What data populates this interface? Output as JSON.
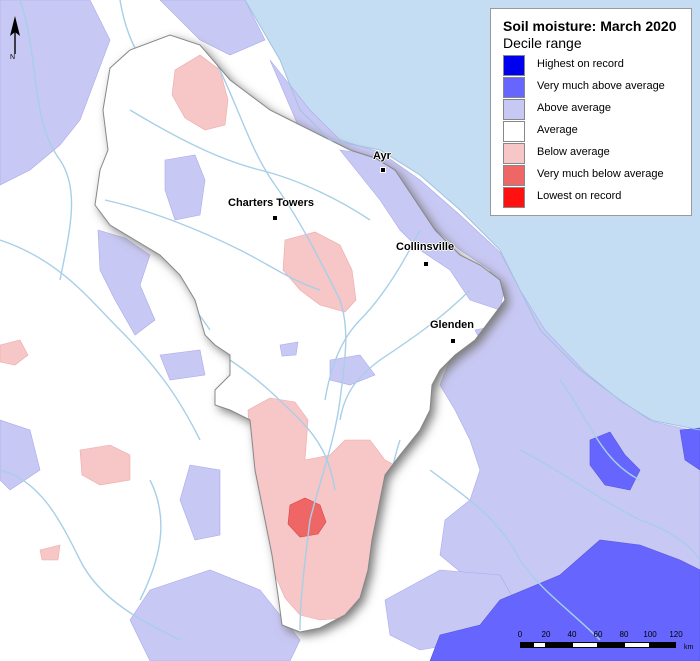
{
  "legend": {
    "title": "Soil moisture: March 2020",
    "subtitle": "Decile range",
    "items": [
      {
        "label": "Highest on record",
        "color": "#0000ee"
      },
      {
        "label": "Very much above average",
        "color": "#6666ff"
      },
      {
        "label": "Above average",
        "color": "#c8c8f4"
      },
      {
        "label": "Average",
        "color": "#ffffff"
      },
      {
        "label": "Below average",
        "color": "#f7c6c6"
      },
      {
        "label": "Very much below average",
        "color": "#ee6666"
      },
      {
        "label": "Lowest on record",
        "color": "#ff1111"
      }
    ]
  },
  "towns": [
    {
      "id": "ayr",
      "name": "Ayr"
    },
    {
      "id": "charters-towers",
      "name": "Charters Towers"
    },
    {
      "id": "collinsville",
      "name": "Collinsville"
    },
    {
      "id": "glenden",
      "name": "Glenden"
    }
  ],
  "north_arrow": {
    "letter": "N"
  },
  "scale_bar": {
    "ticks": [
      "0",
      "20",
      "40",
      "60",
      "80",
      "100",
      "120"
    ],
    "unit": "km"
  },
  "colors": {
    "sea": "#c5ddf2",
    "river": "#a8cfe8",
    "boundary_shadow": "#777777"
  }
}
